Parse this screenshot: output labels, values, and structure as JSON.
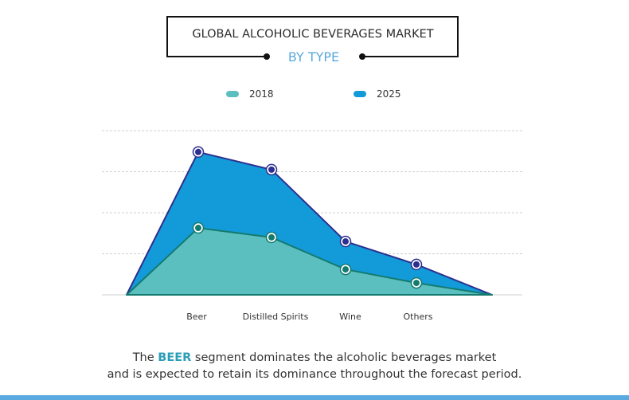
{
  "chart_data": {
    "type": "area",
    "title": "GLOBAL ALCOHOLIC BEVERAGES MARKET",
    "subtitle": "BY TYPE",
    "categories": [
      "Beer",
      "Distilled Spirits",
      "Wine",
      "Others"
    ],
    "series": [
      {
        "name": "2018",
        "values": [
          1.63,
          1.4,
          0.62,
          0.29
        ],
        "color": "#5bbfbf",
        "line_color": "#147a6e"
      },
      {
        "name": "2025",
        "values": [
          3.48,
          3.05,
          1.3,
          0.74
        ],
        "color": "#139bd9",
        "line_color": "#2c2f8f"
      }
    ],
    "ylim": [
      0,
      4
    ],
    "grid": true,
    "legend": "top-center",
    "xlabel": "",
    "ylabel": ""
  },
  "caption": {
    "pre": "The ",
    "highlight": "BEER",
    "post": " segment dominates the alcoholic beverages market",
    "line2": "and is expected to retain its dominance throughout the forecast period."
  },
  "colors": {
    "accent": "#2a9db7",
    "bottom_bar": "#5aa9e0"
  }
}
